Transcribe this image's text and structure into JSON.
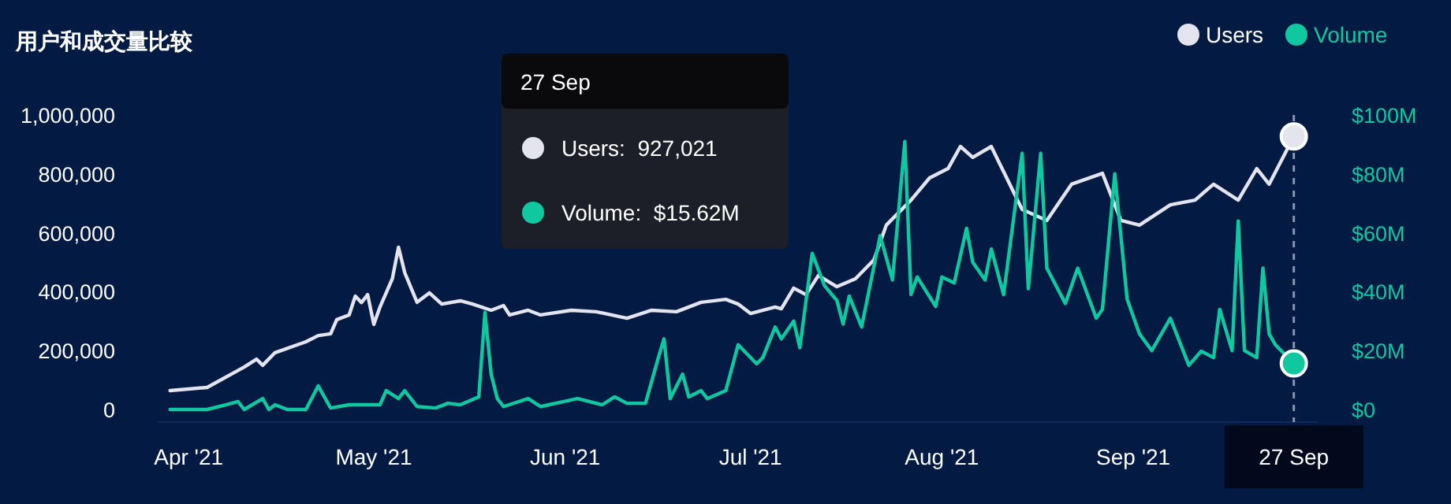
{
  "chart_data": {
    "type": "line",
    "title": "用户和成交量比较",
    "xlim": [
      "2021-03-27",
      "2021-10-01"
    ],
    "xticks": [
      {
        "value": "2021-04-01",
        "label": "Apr '21"
      },
      {
        "value": "2021-05-01",
        "label": "May '21"
      },
      {
        "value": "2021-06-01",
        "label": "Jun '21"
      },
      {
        "value": "2021-07-01",
        "label": "Jul '21"
      },
      {
        "value": "2021-08-01",
        "label": "Aug '21"
      },
      {
        "value": "2021-09-01",
        "label": "Sep '21"
      }
    ],
    "ylim": [
      0,
      1000000
    ],
    "yticks": [
      0,
      {
        "value": 200000,
        "label": "200,000"
      },
      {
        "value": 400000,
        "label": "400,000"
      },
      {
        "value": 600000,
        "label": "600,000"
      },
      {
        "value": 800000,
        "label": "800,000"
      },
      {
        "value": 1000000,
        "label": "1,000,000"
      }
    ],
    "y2lim": [
      0,
      100
    ],
    "y2ticks": [
      {
        "value": 0,
        "label": "$0"
      },
      {
        "value": 20,
        "label": "$20M"
      },
      {
        "value": 40,
        "label": "$40M"
      },
      {
        "value": 60,
        "label": "$60M"
      },
      {
        "value": 80,
        "label": "$80M"
      },
      {
        "value": 100,
        "label": "$100M"
      }
    ],
    "legend": "top right",
    "grid": false,
    "marker": "none",
    "line_style": "solid",
    "ref_lines": [
      {
        "axis": "x",
        "value": "2021-09-27",
        "label": "27 Sep",
        "line_style": "dashed",
        "color": "#8a93a8"
      }
    ],
    "annotations": [
      "27 Sep",
      "Users:  927,021",
      "Volume:  $15.62M"
    ],
    "series": [
      {
        "name": "Users",
        "color": "#e4e4ee",
        "x": [
          "2021-03-29",
          "2021-04-04",
          "2021-04-10",
          "2021-04-12",
          "2021-04-13",
          "2021-04-15",
          "2021-04-20",
          "2021-04-22",
          "2021-04-24",
          "2021-04-25",
          "2021-04-27",
          "2021-04-28",
          "2021-04-29",
          "2021-04-30",
          "2021-05-01",
          "2021-05-02",
          "2021-05-04",
          "2021-05-05",
          "2021-05-06",
          "2021-05-08",
          "2021-05-10",
          "2021-05-12",
          "2021-05-15",
          "2021-05-17",
          "2021-05-20",
          "2021-05-22",
          "2021-05-23",
          "2021-05-26",
          "2021-05-28",
          "2021-06-02",
          "2021-06-06",
          "2021-06-11",
          "2021-06-15",
          "2021-06-19",
          "2021-06-23",
          "2021-06-27",
          "2021-06-29",
          "2021-07-01",
          "2021-07-05",
          "2021-07-06",
          "2021-07-08",
          "2021-07-10",
          "2021-07-12",
          "2021-07-15",
          "2021-07-18",
          "2021-07-21",
          "2021-07-23",
          "2021-07-27",
          "2021-07-30",
          "2021-08-02",
          "2021-08-04",
          "2021-08-06",
          "2021-08-09",
          "2021-08-14",
          "2021-08-18",
          "2021-08-22",
          "2021-08-27",
          "2021-08-30",
          "2021-09-02",
          "2021-09-07",
          "2021-09-11",
          "2021-09-14",
          "2021-09-18",
          "2021-09-21",
          "2021-09-23",
          "2021-09-27"
        ],
        "values": [
          64000,
          75000,
          144000,
          171000,
          150000,
          193000,
          230000,
          251000,
          257000,
          305000,
          321000,
          385000,
          363000,
          390000,
          289000,
          348000,
          444000,
          551000,
          465000,
          364000,
          396000,
          358000,
          369000,
          358000,
          337000,
          353000,
          321000,
          337000,
          321000,
          337000,
          332000,
          310000,
          337000,
          332000,
          364000,
          374000,
          358000,
          326000,
          348000,
          342000,
          412000,
          390000,
          455000,
          417000,
          444000,
          508000,
          626000,
          711000,
          786000,
          818000,
          893000,
          856000,
          893000,
          679000,
          642000,
          765000,
          802000,
          642000,
          626000,
          695000,
          711000,
          765000,
          711000,
          818000,
          765000,
          927021
        ]
      },
      {
        "name": "Volume",
        "color": "#10c8a0",
        "axis": "y2",
        "x": [
          "2021-03-29",
          "2021-04-04",
          "2021-04-07",
          "2021-04-09",
          "2021-04-10",
          "2021-04-13",
          "2021-04-14",
          "2021-04-15",
          "2021-04-17",
          "2021-04-20",
          "2021-04-22",
          "2021-04-24",
          "2021-04-27",
          "2021-05-02",
          "2021-05-03",
          "2021-05-05",
          "2021-05-06",
          "2021-05-08",
          "2021-05-11",
          "2021-05-13",
          "2021-05-15",
          "2021-05-18",
          "2021-05-19",
          "2021-05-20",
          "2021-05-21",
          "2021-05-22",
          "2021-05-26",
          "2021-05-28",
          "2021-06-03",
          "2021-06-07",
          "2021-06-09",
          "2021-06-11",
          "2021-06-14",
          "2021-06-16",
          "2021-06-17",
          "2021-06-18",
          "2021-06-20",
          "2021-06-21",
          "2021-06-23",
          "2021-06-24",
          "2021-06-27",
          "2021-06-29",
          "2021-07-02",
          "2021-07-03",
          "2021-07-05",
          "2021-07-06",
          "2021-07-08",
          "2021-07-09",
          "2021-07-11",
          "2021-07-13",
          "2021-07-15",
          "2021-07-16",
          "2021-07-17",
          "2021-07-19",
          "2021-07-22",
          "2021-07-24",
          "2021-07-26",
          "2021-07-27",
          "2021-07-28",
          "2021-07-31",
          "2021-08-01",
          "2021-08-03",
          "2021-08-05",
          "2021-08-06",
          "2021-08-08",
          "2021-08-09",
          "2021-08-11",
          "2021-08-14",
          "2021-08-15",
          "2021-08-17",
          "2021-08-18",
          "2021-08-21",
          "2021-08-23",
          "2021-08-26",
          "2021-08-27",
          "2021-08-29",
          "2021-08-31",
          "2021-09-02",
          "2021-09-04",
          "2021-09-07",
          "2021-09-10",
          "2021-09-12",
          "2021-09-14",
          "2021-09-15",
          "2021-09-17",
          "2021-09-18",
          "2021-09-19",
          "2021-09-21",
          "2021-09-22",
          "2021-09-23",
          "2021-09-24",
          "2021-09-27"
        ],
        "values": [
          0,
          0,
          1.6,
          2.7,
          0,
          3.7,
          0,
          1.6,
          0,
          0,
          8,
          0.5,
          1.6,
          1.6,
          6.4,
          3.7,
          6.4,
          1,
          0.5,
          2.1,
          1.6,
          4.3,
          33,
          12,
          3.7,
          1,
          3.7,
          1,
          3.7,
          1.6,
          4.3,
          2.1,
          2.1,
          17,
          24,
          3.7,
          12,
          4.3,
          6.4,
          3.7,
          6.4,
          22,
          15.5,
          17.6,
          28,
          24,
          30,
          21,
          53,
          42,
          37,
          29,
          38.5,
          28,
          59,
          44,
          91,
          39,
          45,
          35,
          45,
          43,
          61.5,
          50,
          44,
          54.5,
          39,
          87,
          41,
          87,
          48,
          36,
          48,
          31,
          34,
          80,
          37.5,
          25.7,
          20,
          31,
          15,
          19.8,
          17.6,
          34,
          20,
          64,
          20,
          17.6,
          48,
          25.7,
          22,
          15.62
        ]
      }
    ]
  }
}
